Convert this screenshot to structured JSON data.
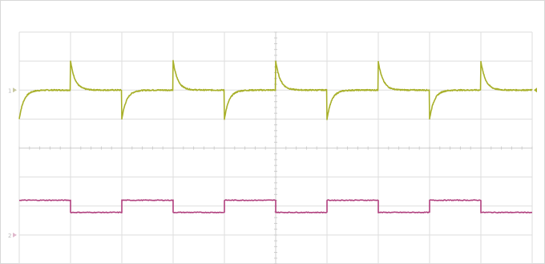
{
  "chart_data": {
    "type": "line",
    "title": "",
    "xlabel": "",
    "ylabel": "",
    "grid": true,
    "x_divisions": 10,
    "y_divisions": 8,
    "xlim": [
      0,
      10
    ],
    "ylim": [
      -4,
      4
    ],
    "period": 2.0,
    "duty": 0.5,
    "channel_markers": [
      {
        "label": "1",
        "y": 2.0,
        "color": "#c8c8a0"
      },
      {
        "label": "2",
        "y": -3.0,
        "color": "#e0b8cc"
      }
    ],
    "series": [
      {
        "channel": 1,
        "color": "#a8b02a",
        "kind": "exponential-spikes",
        "baseline": 2.0,
        "spike_amplitude": 1.0,
        "decay_tau": 0.09,
        "edges": [
          {
            "x": 1.0,
            "direction": "up"
          },
          {
            "x": 2.0,
            "direction": "down"
          },
          {
            "x": 3.0,
            "direction": "up"
          },
          {
            "x": 4.0,
            "direction": "down"
          },
          {
            "x": 5.0,
            "direction": "up"
          },
          {
            "x": 6.0,
            "direction": "down"
          },
          {
            "x": 7.0,
            "direction": "up"
          },
          {
            "x": 8.0,
            "direction": "down"
          },
          {
            "x": 9.0,
            "direction": "up"
          }
        ],
        "initial_edge": {
          "x": 0.0,
          "direction": "down"
        }
      },
      {
        "channel": 2,
        "color": "#b0407e",
        "kind": "square",
        "high": -1.8,
        "low": -2.22,
        "levels": [
          {
            "x0": 0.0,
            "x1": 1.0,
            "level": "high"
          },
          {
            "x0": 1.0,
            "x1": 2.0,
            "level": "low"
          },
          {
            "x0": 2.0,
            "x1": 3.0,
            "level": "high"
          },
          {
            "x0": 3.0,
            "x1": 4.0,
            "level": "low"
          },
          {
            "x0": 4.0,
            "x1": 5.0,
            "level": "high"
          },
          {
            "x0": 5.0,
            "x1": 6.0,
            "level": "low"
          },
          {
            "x0": 6.0,
            "x1": 7.0,
            "level": "high"
          },
          {
            "x0": 7.0,
            "x1": 8.0,
            "level": "low"
          },
          {
            "x0": 8.0,
            "x1": 9.0,
            "level": "high"
          },
          {
            "x0": 9.0,
            "x1": 10.0,
            "level": "low"
          }
        ]
      }
    ]
  }
}
